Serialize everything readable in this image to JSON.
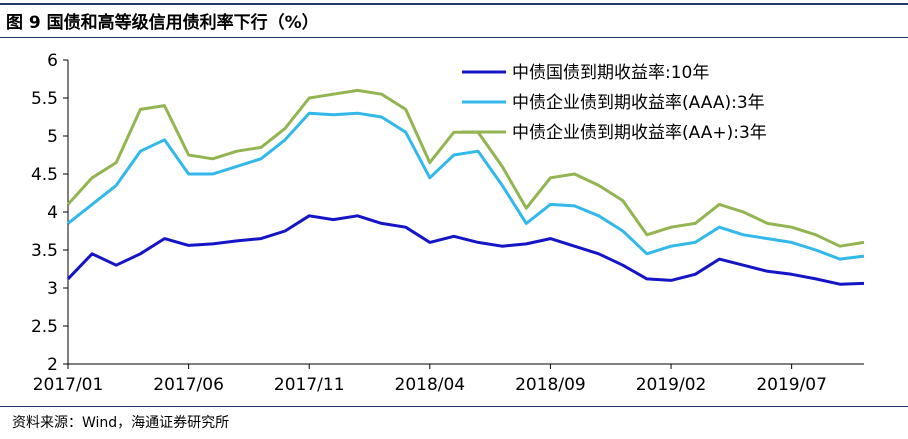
{
  "figure": {
    "title": "图 9  国债和高等级信用债利率下行（%）",
    "source": "资料来源：Wind，海通证券研究所"
  },
  "colors": {
    "series_10y": "#1515c8",
    "series_aaa": "#33b8ea",
    "series_aa_plus": "#92b552",
    "rule": "#1f3864"
  },
  "chart_data": {
    "type": "line",
    "title": "",
    "xlabel": "",
    "ylabel": "",
    "ylim": [
      2,
      6
    ],
    "yticks": [
      "2",
      "2.5",
      "3",
      "3.5",
      "4",
      "4.5",
      "5",
      "5.5",
      "6"
    ],
    "xlim": [
      "2017-01",
      "2019-10"
    ],
    "xticks": [
      "2017/01",
      "2017/06",
      "2017/11",
      "2018/04",
      "2018/09",
      "2019/02",
      "2019/07"
    ],
    "grid": false,
    "legend_position": "top-right",
    "series": [
      {
        "name": "中债国债到期收益率:10年",
        "color_key": "series_10y",
        "x": [
          "2017-01",
          "2017-02",
          "2017-03",
          "2017-04",
          "2017-05",
          "2017-06",
          "2017-07",
          "2017-08",
          "2017-09",
          "2017-10",
          "2017-11",
          "2017-12",
          "2018-01",
          "2018-02",
          "2018-03",
          "2018-04",
          "2018-05",
          "2018-06",
          "2018-07",
          "2018-08",
          "2018-09",
          "2018-10",
          "2018-11",
          "2018-12",
          "2019-01",
          "2019-02",
          "2019-03",
          "2019-04",
          "2019-05",
          "2019-06",
          "2019-07",
          "2019-08",
          "2019-09",
          "2019-10"
        ],
        "values": [
          3.12,
          3.45,
          3.3,
          3.45,
          3.65,
          3.56,
          3.58,
          3.62,
          3.65,
          3.75,
          3.95,
          3.9,
          3.95,
          3.85,
          3.8,
          3.6,
          3.68,
          3.6,
          3.55,
          3.58,
          3.65,
          3.55,
          3.45,
          3.3,
          3.12,
          3.1,
          3.18,
          3.38,
          3.3,
          3.22,
          3.18,
          3.12,
          3.05,
          3.06
        ]
      },
      {
        "name": "中债企业债到期收益率(AAA):3年",
        "color_key": "series_aaa",
        "x": [
          "2017-01",
          "2017-02",
          "2017-03",
          "2017-04",
          "2017-05",
          "2017-06",
          "2017-07",
          "2017-08",
          "2017-09",
          "2017-10",
          "2017-11",
          "2017-12",
          "2018-01",
          "2018-02",
          "2018-03",
          "2018-04",
          "2018-05",
          "2018-06",
          "2018-07",
          "2018-08",
          "2018-09",
          "2018-10",
          "2018-11",
          "2018-12",
          "2019-01",
          "2019-02",
          "2019-03",
          "2019-04",
          "2019-05",
          "2019-06",
          "2019-07",
          "2019-08",
          "2019-09",
          "2019-10"
        ],
        "values": [
          3.85,
          4.1,
          4.35,
          4.8,
          4.95,
          4.5,
          4.5,
          4.6,
          4.7,
          4.95,
          5.3,
          5.28,
          5.3,
          5.25,
          5.05,
          4.45,
          4.75,
          4.8,
          4.35,
          3.85,
          4.1,
          4.08,
          3.95,
          3.75,
          3.45,
          3.55,
          3.6,
          3.8,
          3.7,
          3.65,
          3.6,
          3.5,
          3.38,
          3.42
        ]
      },
      {
        "name": "中债企业债到期收益率(AA+):3年",
        "color_key": "series_aa_plus",
        "x": [
          "2017-01",
          "2017-02",
          "2017-03",
          "2017-04",
          "2017-05",
          "2017-06",
          "2017-07",
          "2017-08",
          "2017-09",
          "2017-10",
          "2017-11",
          "2017-12",
          "2018-01",
          "2018-02",
          "2018-03",
          "2018-04",
          "2018-05",
          "2018-06",
          "2018-07",
          "2018-08",
          "2018-09",
          "2018-10",
          "2018-11",
          "2018-12",
          "2019-01",
          "2019-02",
          "2019-03",
          "2019-04",
          "2019-05",
          "2019-06",
          "2019-07",
          "2019-08",
          "2019-09",
          "2019-10"
        ],
        "values": [
          4.1,
          4.45,
          4.65,
          5.35,
          5.4,
          4.75,
          4.7,
          4.8,
          4.85,
          5.1,
          5.5,
          5.55,
          5.6,
          5.55,
          5.35,
          4.65,
          5.05,
          5.05,
          4.6,
          4.05,
          4.45,
          4.5,
          4.35,
          4.15,
          3.7,
          3.8,
          3.85,
          4.1,
          4.0,
          3.85,
          3.8,
          3.7,
          3.55,
          3.6
        ]
      }
    ]
  }
}
